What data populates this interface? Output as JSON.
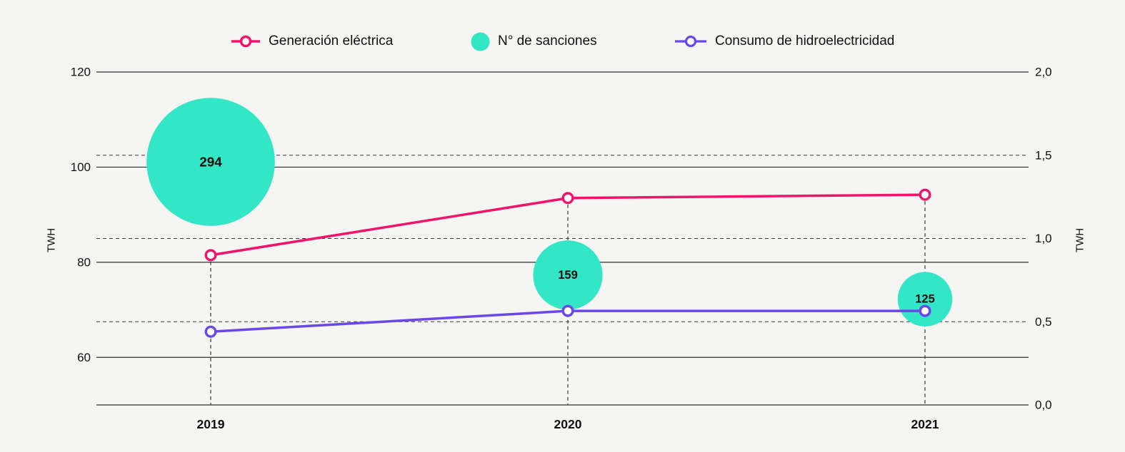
{
  "colors": {
    "background": "#F5F5F3",
    "pink": "#F0156B",
    "teal": "#33E6C5",
    "purple": "#6A47E8",
    "grid": "#2E2E2E",
    "dashed_grid": "#3A3A3A",
    "text": "#111111"
  },
  "legend": {
    "items": [
      {
        "label": "Generación eléctrica",
        "type": "line-marker",
        "color": "#F0156B"
      },
      {
        "label": "N° de sanciones",
        "type": "bubble",
        "color": "#33E6C5"
      },
      {
        "label": "Consumo de hidroelectricidad",
        "type": "line-marker",
        "color": "#6A47E8"
      }
    ]
  },
  "chart_data": {
    "type": "line+bubble",
    "x": [
      "2019",
      "2020",
      "2021"
    ],
    "left_axis": {
      "label": "TWH",
      "ticks": [
        "120",
        "100",
        "80",
        "60"
      ],
      "tick_values": [
        120,
        100,
        80,
        60
      ],
      "range": [
        50,
        120
      ],
      "gridlines": "solid"
    },
    "right_axis": {
      "label": "TWH",
      "ticks": [
        "2,0",
        "1,5",
        "1,0",
        "0,5",
        "0,0"
      ],
      "tick_values": [
        2.0,
        1.5,
        1.0,
        0.5,
        0.0
      ],
      "range": [
        0,
        2.0
      ],
      "dashed_gridline_values": [
        1.5,
        1.0,
        0.5
      ]
    },
    "series": [
      {
        "name": "Generación eléctrica",
        "axis": "left",
        "values": [
          81.5,
          93.5,
          94.2
        ],
        "color": "#F0156B"
      },
      {
        "name": "Consumo de hidroelectricidad",
        "axis": "right",
        "values": [
          0.44,
          0.565,
          0.565
        ],
        "color": "#6A47E8"
      }
    ],
    "bubbles": {
      "name": "N° de sanciones",
      "values": [
        294,
        159,
        125
      ],
      "labels": [
        "294",
        "159",
        "125"
      ],
      "center_y_right_axis": [
        1.46,
        0.78,
        0.635
      ],
      "radius_scale": 0.3055,
      "color": "#33E6C5",
      "label_color": "#0A0A0A"
    }
  }
}
